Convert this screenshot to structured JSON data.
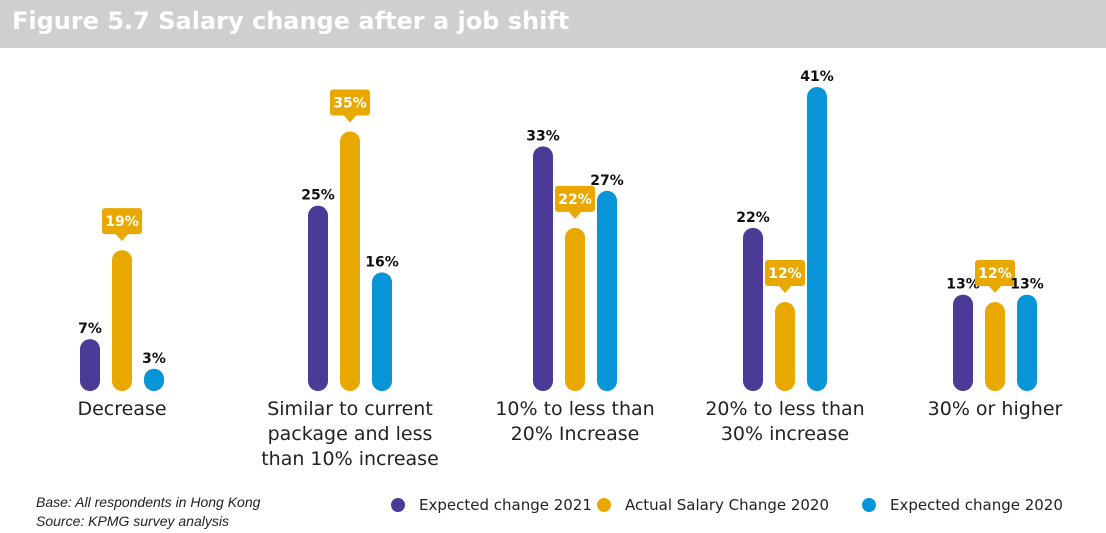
{
  "title": "Figure 5.7 Salary change after a job shift",
  "chart_data": {
    "type": "bar",
    "title": "Figure 5.7 Salary change after a job shift",
    "categories": [
      "Decrease",
      "Similar to current package and less than 10% increase",
      "10% to less than 20% Increase",
      "20% to less than 30% increase",
      "30% or higher"
    ],
    "category_lines": [
      [
        "Decrease"
      ],
      [
        "Similar to current",
        "package and less",
        "than 10% increase"
      ],
      [
        "10% to less than",
        "20% Increase"
      ],
      [
        "20% to less than",
        "30% increase"
      ],
      [
        "30% or higher"
      ]
    ],
    "series": [
      {
        "name": "Expected change 2021",
        "color": "#4b3a96",
        "values": [
          7,
          25,
          33,
          22,
          13
        ],
        "labels": [
          "7%",
          "25%",
          "33%",
          "22%",
          "13%"
        ]
      },
      {
        "name": "Actual Salary Change 2020",
        "color": "#e8a800",
        "values": [
          19,
          35,
          22,
          12,
          12
        ],
        "labels": [
          "19%",
          "35%",
          "22%",
          "12%",
          "12%"
        ],
        "callout": true
      },
      {
        "name": "Expected change 2020",
        "color": "#0895d8",
        "values": [
          3,
          16,
          27,
          41,
          13
        ],
        "labels": [
          "3%",
          "16%",
          "27%",
          "41%",
          "13%"
        ]
      }
    ],
    "ylim": [
      0,
      41
    ],
    "xlabel": "",
    "ylabel": "",
    "grid": false,
    "legend_position": "bottom-right"
  },
  "notes": {
    "base": "Base: All respondents in Hong Kong",
    "source": "Source: KPMG survey analysis"
  }
}
